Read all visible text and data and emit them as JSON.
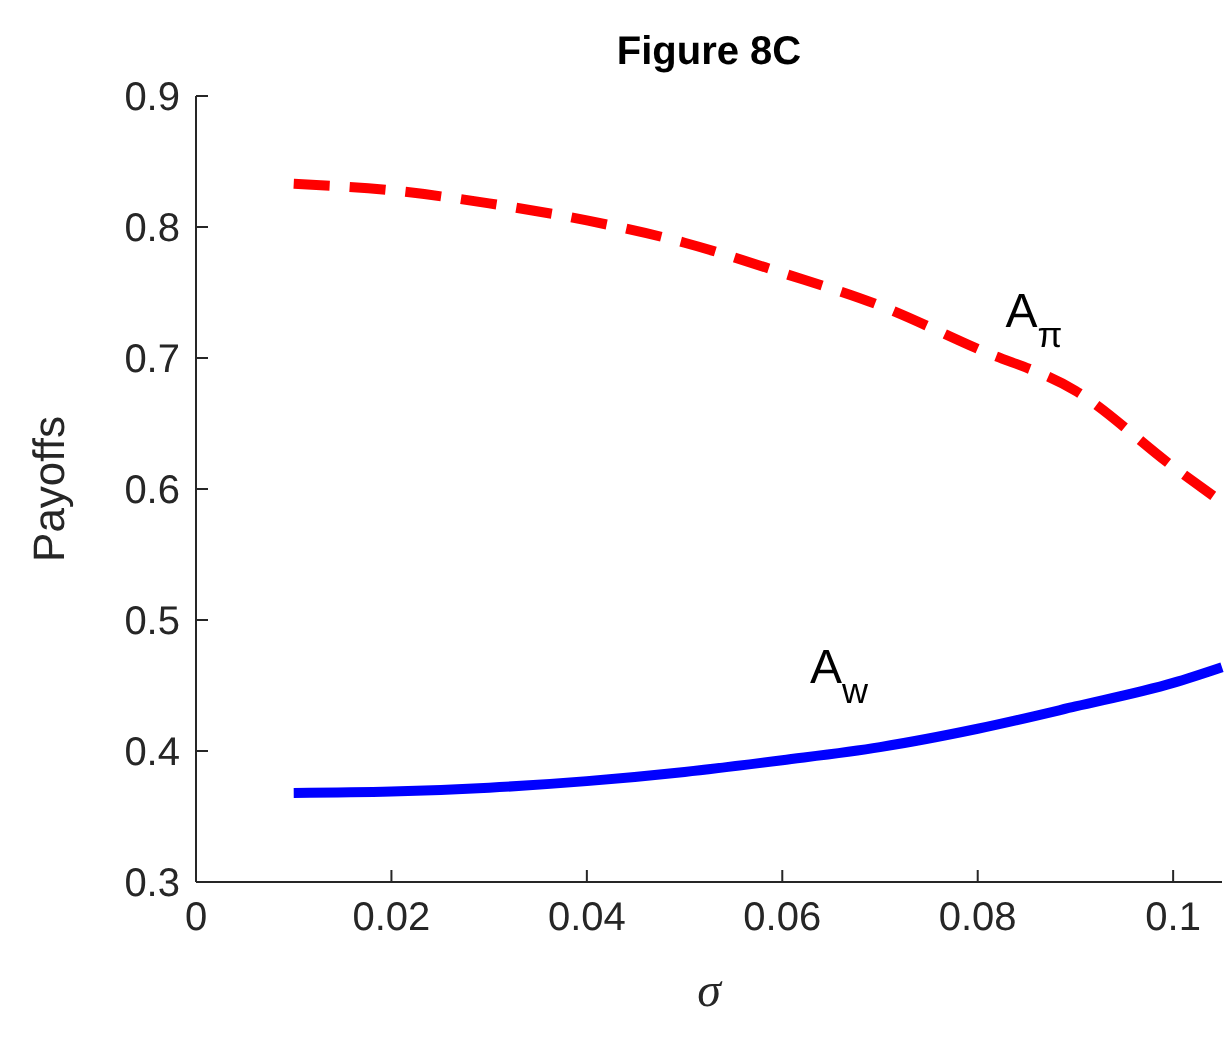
{
  "chart_data": {
    "type": "line",
    "title": "Figure 8C",
    "xlabel": "σ",
    "ylabel": "Payoffs",
    "xlim": [
      0,
      0.105
    ],
    "ylim": [
      0.3,
      0.9
    ],
    "xticks": [
      0,
      0.02,
      0.04,
      0.06,
      0.08,
      0.1
    ],
    "yticks": [
      0.3,
      0.4,
      0.5,
      0.6,
      0.7,
      0.8,
      0.9
    ],
    "grid": false,
    "series": [
      {
        "name": "A$_{π}$",
        "color": "#ff0000",
        "line_style": "dashed",
        "x": [
          0.01,
          0.02,
          0.03,
          0.04,
          0.05,
          0.06,
          0.07,
          0.08,
          0.09,
          0.1,
          0.105
        ],
        "values": [
          0.833,
          0.828,
          0.818,
          0.805,
          0.788,
          0.765,
          0.74,
          0.707,
          0.675,
          0.617,
          0.59
        ]
      },
      {
        "name": "A$_{w}$",
        "color": "#0000ff",
        "line_style": "solid",
        "x": [
          0.01,
          0.02,
          0.03,
          0.04,
          0.05,
          0.06,
          0.07,
          0.08,
          0.09,
          0.1,
          0.105
        ],
        "values": [
          0.368,
          0.369,
          0.372,
          0.377,
          0.384,
          0.393,
          0.403,
          0.417,
          0.434,
          0.452,
          0.464
        ]
      }
    ]
  }
}
